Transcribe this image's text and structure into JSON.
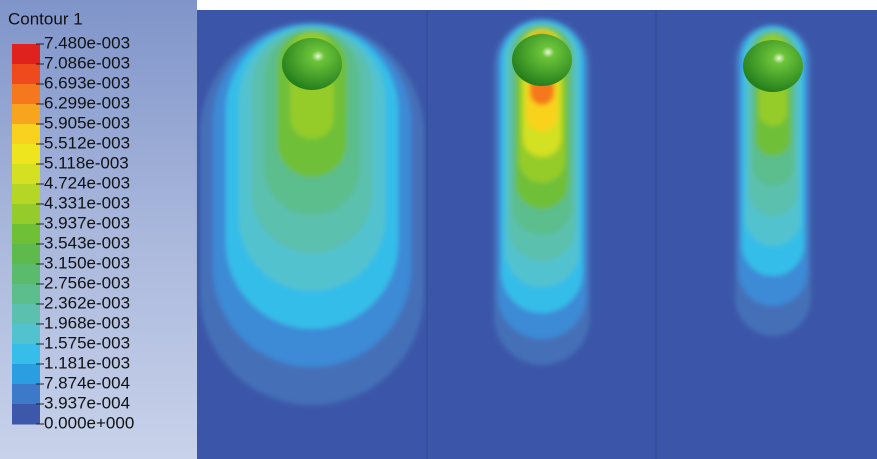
{
  "legend": {
    "title": "Contour 1",
    "labels": [
      "7.480e-003",
      "7.086e-003",
      "6.693e-003",
      "6.299e-003",
      "5.905e-003",
      "5.512e-003",
      "5.118e-003",
      "4.724e-003",
      "4.331e-003",
      "3.937e-003",
      "3.543e-003",
      "3.150e-003",
      "2.756e-003",
      "2.362e-003",
      "1.968e-003",
      "1.575e-003",
      "1.181e-003",
      "7.874e-004",
      "3.937e-004",
      "0.000e+000"
    ]
  }
}
